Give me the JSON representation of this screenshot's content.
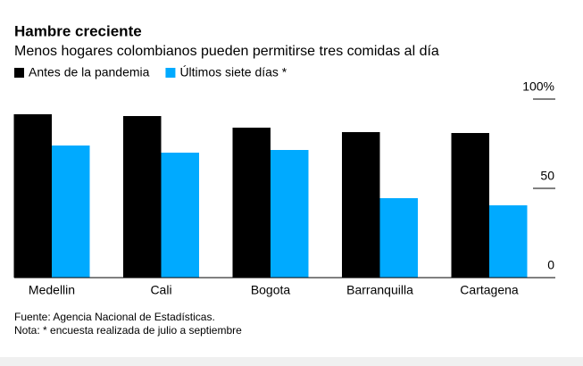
{
  "chart_data": {
    "type": "bar",
    "title": "Hambre creciente",
    "subtitle": "Menos hogares colombianos pueden permitirse tres comidas al día",
    "categories": [
      "Medellin",
      "Cali",
      "Bogota",
      "Barranquilla",
      "Cartagena"
    ],
    "series": [
      {
        "name": "Antes de la pandemia",
        "color": "#000000",
        "values": [
          91.5,
          90.5,
          84,
          81.5,
          81
        ]
      },
      {
        "name": "Últimos siete días *",
        "color": "#00aaff",
        "values": [
          74,
          70,
          71.5,
          44.5,
          40.5
        ]
      }
    ],
    "ylim": [
      0,
      100
    ],
    "yticks": [
      0,
      50,
      {
        "value": 100,
        "label": "100%"
      }
    ],
    "source": "Fuente: Agencia Nacional de Estadísticas.",
    "note": "Nota: * encuesta realizada de julio a septiembre"
  }
}
